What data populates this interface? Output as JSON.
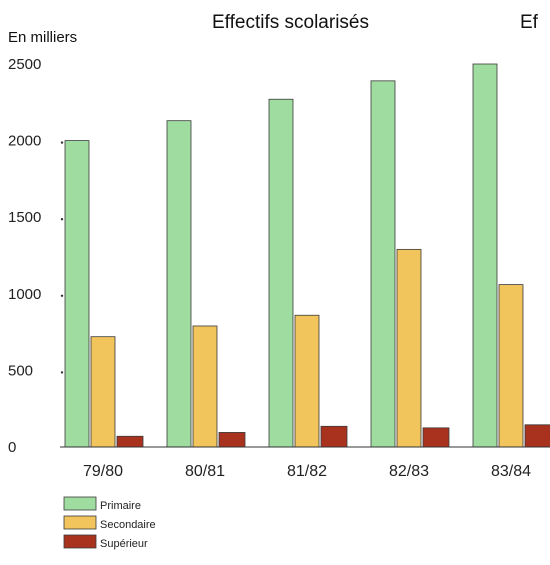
{
  "chart_data": {
    "type": "bar",
    "title": "Effectifs scolarisés",
    "title_clipped": "Ef",
    "ylabel": "En milliers",
    "ylim": [
      0,
      2500
    ],
    "yticks": [
      "0",
      "500",
      "1000",
      "1500",
      "2000",
      "2500"
    ],
    "ytick_values": [
      0,
      500,
      1000,
      1500,
      2000,
      2500
    ],
    "categories": [
      "79/80",
      "80/81",
      "81/82",
      "82/83",
      "83/84"
    ],
    "series": [
      {
        "name": "Primaire",
        "color": "#9fdc9f",
        "values": [
          2000,
          2130,
          2270,
          2390,
          2500
        ]
      },
      {
        "name": "Secondaire",
        "color": "#f2c45c",
        "values": [
          720,
          790,
          860,
          1290,
          1060
        ]
      },
      {
        "name": "Supérieur",
        "color": "#a8321e",
        "values": [
          70,
          95,
          135,
          125,
          145
        ]
      }
    ],
    "grid": false,
    "legend_position": "bottom-left"
  }
}
